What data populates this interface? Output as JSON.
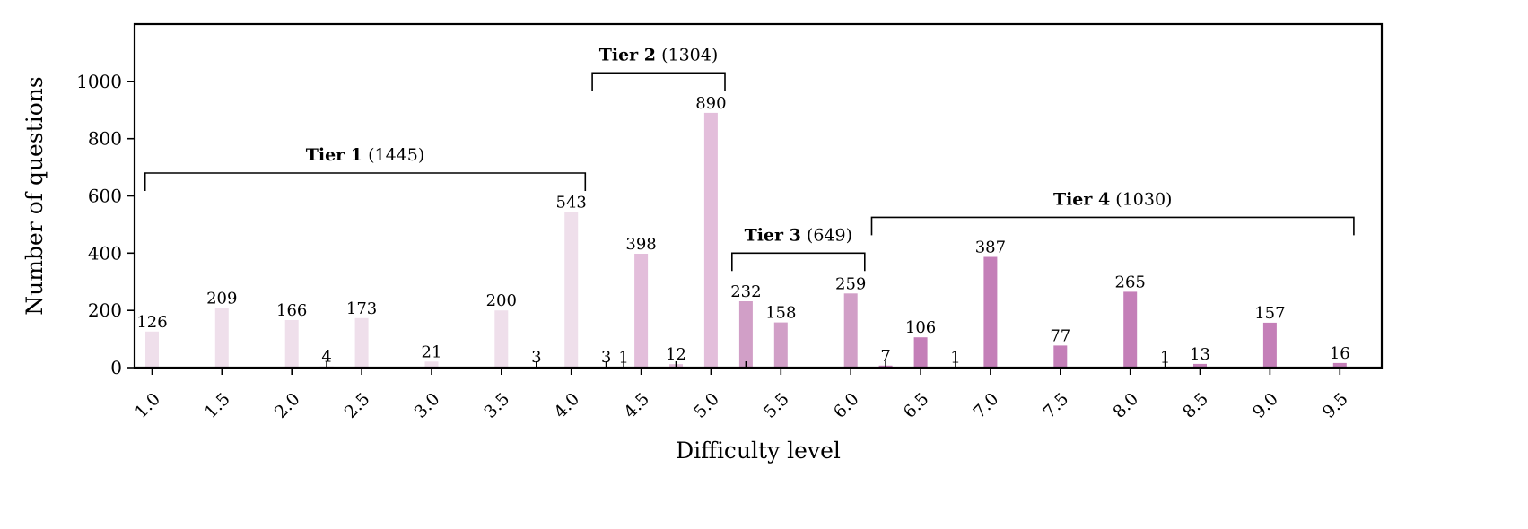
{
  "chart_data": {
    "type": "bar",
    "title": "",
    "xlabel": "Difficulty level",
    "ylabel": "Number of questions",
    "xlim": [
      0.875,
      9.8
    ],
    "ylim": [
      0,
      1200
    ],
    "yticks": [
      0,
      200,
      400,
      600,
      800,
      1000
    ],
    "xticks": [
      1.0,
      1.5,
      2.0,
      2.5,
      3.0,
      3.5,
      4.0,
      4.5,
      5.0,
      5.5,
      6.0,
      6.5,
      7.0,
      7.5,
      8.0,
      8.5,
      9.0,
      9.5
    ],
    "xtick_labels": [
      "1.0",
      "1.5",
      "2.0",
      "2.5",
      "3.0",
      "3.5",
      "4.0",
      "4.5",
      "5.0",
      "5.5",
      "6.0",
      "6.5",
      "7.0",
      "7.5",
      "8.0",
      "8.5",
      "9.0",
      "9.5"
    ],
    "grid": false,
    "bars": [
      {
        "x": 1.0,
        "value": 126,
        "label": "126",
        "tier": 1
      },
      {
        "x": 1.5,
        "value": 209,
        "label": "209",
        "tier": 1
      },
      {
        "x": 2.0,
        "value": 166,
        "label": "166",
        "tier": 1
      },
      {
        "x": 2.25,
        "value": 4,
        "label": "4",
        "tier": 1
      },
      {
        "x": 2.5,
        "value": 173,
        "label": "173",
        "tier": 1
      },
      {
        "x": 3.0,
        "value": 21,
        "label": "21",
        "tier": 1
      },
      {
        "x": 3.5,
        "value": 200,
        "label": "200",
        "tier": 1
      },
      {
        "x": 3.75,
        "value": 3,
        "label": "3",
        "tier": 1
      },
      {
        "x": 4.0,
        "value": 543,
        "label": "543",
        "tier": 1
      },
      {
        "x": 4.25,
        "value": 3,
        "label": "3",
        "tier": 2
      },
      {
        "x": 4.375,
        "value": 1,
        "label": "1",
        "tier": 2
      },
      {
        "x": 4.5,
        "value": 398,
        "label": "398",
        "tier": 2
      },
      {
        "x": 4.75,
        "value": 12,
        "label": "12",
        "tier": 2
      },
      {
        "x": 5.0,
        "value": 890,
        "label": "890",
        "tier": 2
      },
      {
        "x": 5.25,
        "value": 232,
        "label": "232",
        "tier": 3
      },
      {
        "x": 5.5,
        "value": 158,
        "label": "158",
        "tier": 3
      },
      {
        "x": 6.0,
        "value": 259,
        "label": "259",
        "tier": 3
      },
      {
        "x": 6.25,
        "value": 7,
        "label": "7",
        "tier": 4
      },
      {
        "x": 6.5,
        "value": 106,
        "label": "106",
        "tier": 4
      },
      {
        "x": 6.75,
        "value": 1,
        "label": "1",
        "tier": 4
      },
      {
        "x": 7.0,
        "value": 387,
        "label": "387",
        "tier": 4
      },
      {
        "x": 7.5,
        "value": 77,
        "label": "77",
        "tier": 4
      },
      {
        "x": 8.0,
        "value": 265,
        "label": "265",
        "tier": 4
      },
      {
        "x": 8.25,
        "value": 1,
        "label": "1",
        "tier": 4
      },
      {
        "x": 8.5,
        "value": 13,
        "label": "13",
        "tier": 4
      },
      {
        "x": 9.0,
        "value": 157,
        "label": "157",
        "tier": 4
      },
      {
        "x": 9.5,
        "value": 16,
        "label": "16",
        "tier": 4
      }
    ],
    "tiers": [
      {
        "name": "Tier 1",
        "count": "(1445)",
        "x_start": 0.95,
        "x_end": 4.1,
        "y": 680,
        "color": "#efdfeb"
      },
      {
        "name": "Tier 2",
        "count": "(1304)",
        "x_start": 4.15,
        "x_end": 5.1,
        "y": 1030,
        "color": "#e3bedb"
      },
      {
        "name": "Tier 3",
        "count": "(649)",
        "x_start": 5.15,
        "x_end": 6.1,
        "y": 400,
        "color": "#d19fc7"
      },
      {
        "name": "Tier 4",
        "count": "(1030)",
        "x_start": 6.15,
        "x_end": 9.6,
        "y": 525,
        "color": "#c47fb8"
      }
    ],
    "colors": {
      "tier1": "#efdfeb",
      "tier2": "#e3bedb",
      "tier3": "#d19fc7",
      "tier4": "#c47fb8",
      "axis": "#000000"
    }
  }
}
